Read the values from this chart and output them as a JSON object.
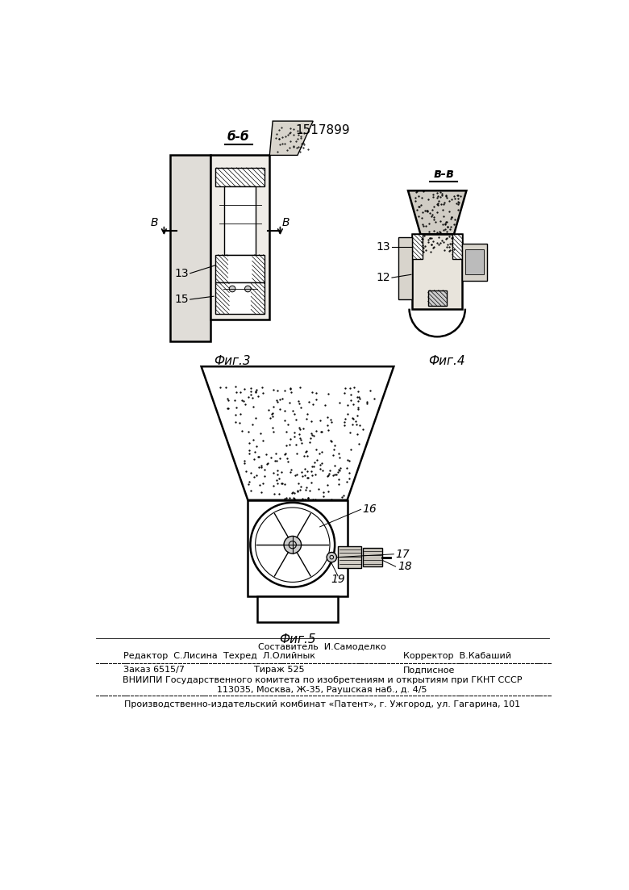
{
  "patent_number": "1517899",
  "bg_color": "#ffffff",
  "section_bb": "б-б",
  "section_vv": "в-в",
  "label_13_fig3": "13",
  "label_15_fig3": "15",
  "label_13_fig4": "13",
  "label_12_fig4": "12",
  "label_16": "16",
  "label_17": "17",
  "label_18": "18",
  "label_19": "19",
  "fig3_caption": "Фиг.3",
  "fig4_caption": "Фиг.4",
  "fig5_caption": "Фиг.5",
  "footer_comp": "Составитель  И.Самоделко",
  "footer_editor": "Редактор  С.Лисина",
  "footer_tech": "Техред  Л.Олийнык",
  "footer_corr": "Корректор  В.Кабаший",
  "footer_order": "Заказ 6515/7",
  "footer_circ": "Тираж 525",
  "footer_sub": "Подписное",
  "footer_vniip1": "ВНИИПИ Государственного комитета по изобретениям и открытиям при ГКНТ СССР",
  "footer_vniip2": "113035, Москва, Ж-35, Раушская наб., д. 4/5",
  "footer_patent": "Производственно-издательский комбинат «Патент», г. Ужгород, ул. Гагарина, 101"
}
